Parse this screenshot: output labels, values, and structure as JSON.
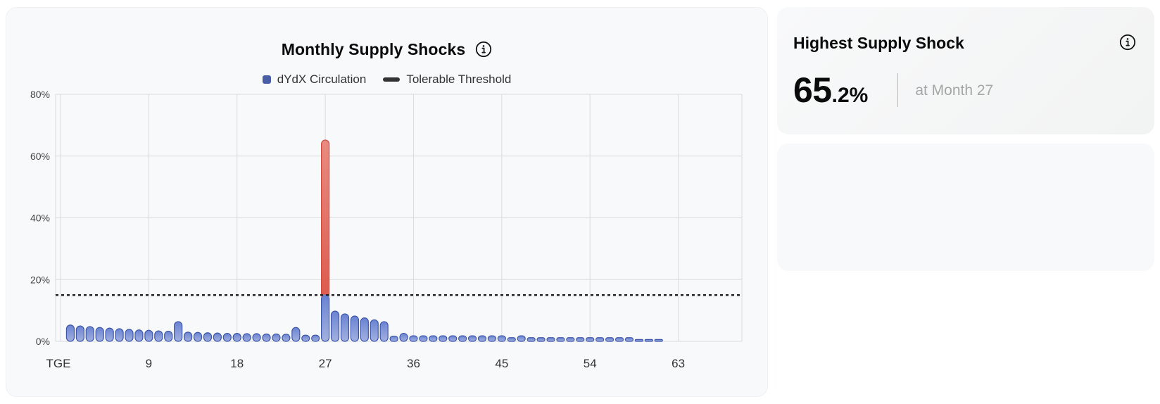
{
  "chart_card": {
    "title": "Monthly Supply Shocks",
    "title_icon": "info-icon",
    "legend": [
      {
        "label": "dYdX Circulation",
        "type": "box",
        "color": "#4a5ea8"
      },
      {
        "label": "Tolerable Threshold",
        "type": "line",
        "color": "#333333"
      }
    ]
  },
  "stat_card": {
    "title": "Highest Supply Shock",
    "title_icon": "info-icon",
    "value_int": "65",
    "value_dec": ".2%",
    "subtitle": "at Month 27"
  },
  "colors": {
    "bar_fill_top": "#6a83d2",
    "bar_fill_bottom": "#a3b1e0",
    "bar_stroke": "#3d56a8",
    "exceed_fill_top": "#e98a80",
    "exceed_fill_bottom": "#dd5b4e",
    "exceed_stroke": "#d04a3d",
    "threshold": "#222222",
    "grid": "#d9dbdf"
  },
  "chart_data": {
    "type": "bar",
    "title": "Monthly Supply Shocks",
    "xlabel": "",
    "ylabel": "",
    "ylim": [
      0,
      80
    ],
    "y_ticks": [
      "0%",
      "20%",
      "40%",
      "60%",
      "80%"
    ],
    "x_ticks": [
      {
        "month": 0,
        "label": "TGE"
      },
      {
        "month": 9,
        "label": "9"
      },
      {
        "month": 18,
        "label": "18"
      },
      {
        "month": 27,
        "label": "27"
      },
      {
        "month": 36,
        "label": "36"
      },
      {
        "month": 45,
        "label": "45"
      },
      {
        "month": 54,
        "label": "54"
      },
      {
        "month": 63,
        "label": "63"
      }
    ],
    "x_range": [
      0,
      69
    ],
    "grid": true,
    "legend_position": "top",
    "threshold": {
      "name": "Tolerable Threshold",
      "value": 15,
      "style": "dotted"
    },
    "series": [
      {
        "name": "dYdX Circulation",
        "months": [
          1,
          2,
          3,
          4,
          5,
          6,
          7,
          8,
          9,
          10,
          11,
          12,
          13,
          14,
          15,
          16,
          17,
          18,
          19,
          20,
          21,
          22,
          23,
          24,
          25,
          26,
          27,
          28,
          29,
          30,
          31,
          32,
          33,
          34,
          35,
          36,
          37,
          38,
          39,
          40,
          41,
          42,
          43,
          44,
          45,
          46,
          47,
          48,
          49,
          50,
          51,
          52,
          53,
          54,
          55,
          56,
          57,
          58,
          59,
          60,
          61
        ],
        "values": [
          5.3,
          5.0,
          4.8,
          4.5,
          4.3,
          4.1,
          3.9,
          3.7,
          3.6,
          3.4,
          3.3,
          6.4,
          3.0,
          2.9,
          2.8,
          2.7,
          2.6,
          2.6,
          2.5,
          2.5,
          2.4,
          2.4,
          2.3,
          4.5,
          2.0,
          2.0,
          65.2,
          9.8,
          8.9,
          8.2,
          7.6,
          7.0,
          6.4,
          1.7,
          2.6,
          1.8,
          1.8,
          1.8,
          1.8,
          1.8,
          1.8,
          1.8,
          1.8,
          1.8,
          1.8,
          1.2,
          1.8,
          1.2,
          1.2,
          1.2,
          1.2,
          1.2,
          1.2,
          1.2,
          1.2,
          1.2,
          1.2,
          1.2,
          0.6,
          0.6,
          0.6
        ]
      }
    ],
    "highlight": {
      "month": 27,
      "value": 65.2,
      "note": "portion above threshold shown in red"
    }
  }
}
